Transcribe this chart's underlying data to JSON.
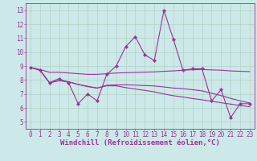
{
  "background_color": "#cce8e8",
  "grid_color": "#aaccbb",
  "line_color": "#993399",
  "marker": "D",
  "markersize": 2.2,
  "linewidth": 0.8,
  "xlabel": "Windchill (Refroidissement éolien,°C)",
  "xlabel_fontsize": 6.5,
  "ytick_vals": [
    5,
    6,
    7,
    8,
    9,
    10,
    11,
    12,
    13
  ],
  "xtick_vals": [
    0,
    1,
    2,
    3,
    4,
    5,
    6,
    7,
    8,
    9,
    10,
    11,
    12,
    13,
    14,
    15,
    16,
    17,
    18,
    19,
    20,
    21,
    22,
    23
  ],
  "ylim": [
    4.5,
    13.5
  ],
  "xlim": [
    -0.5,
    23.5
  ],
  "tick_fontsize": 5.5,
  "series_markers": [
    true,
    false,
    false,
    false
  ],
  "series": [
    [
      8.9,
      8.7,
      7.8,
      8.1,
      7.8,
      6.3,
      7.0,
      6.5,
      8.4,
      9.0,
      10.4,
      11.1,
      9.8,
      9.4,
      13.0,
      10.9,
      8.7,
      8.8,
      8.8,
      6.5,
      7.3,
      5.3,
      6.3,
      6.3
    ],
    [
      8.9,
      8.75,
      8.55,
      8.55,
      8.5,
      8.45,
      8.4,
      8.4,
      8.45,
      8.5,
      8.52,
      8.54,
      8.56,
      8.58,
      8.62,
      8.65,
      8.7,
      8.73,
      8.75,
      8.72,
      8.7,
      8.65,
      8.62,
      8.6
    ],
    [
      8.9,
      8.7,
      7.8,
      7.95,
      7.87,
      7.68,
      7.55,
      7.42,
      7.62,
      7.65,
      7.65,
      7.63,
      7.6,
      7.57,
      7.5,
      7.42,
      7.38,
      7.3,
      7.22,
      7.05,
      6.88,
      6.68,
      6.5,
      6.35
    ],
    [
      8.9,
      8.7,
      7.8,
      7.95,
      7.87,
      7.68,
      7.52,
      7.42,
      7.58,
      7.58,
      7.45,
      7.35,
      7.25,
      7.15,
      7.0,
      6.87,
      6.78,
      6.67,
      6.58,
      6.47,
      6.37,
      6.27,
      6.17,
      6.08
    ]
  ]
}
